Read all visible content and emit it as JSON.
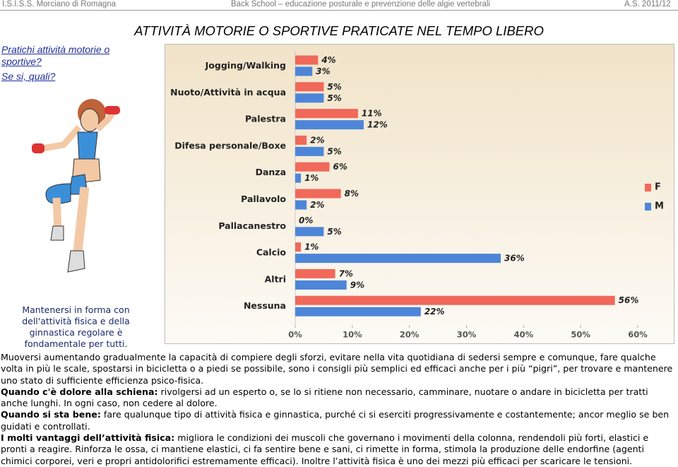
{
  "header": {
    "left": "I.S.I.S.S. Morciano di Romagna",
    "center": "Back School – educazione posturale e prevenzione delle algie vertebrali",
    "right": "A.S. 2011/12"
  },
  "title": "ATTIVITÀ MOTORIE O SPORTIVE PRATICATE NEL TEMPO LIBERO",
  "question": {
    "line1": "Pratichi attività motorie o sportive?",
    "line2": "Se si, quali?"
  },
  "caption": "Mantenersi in forma con dell'attività fisica e della ginnastica regolare è fondamentale per tutti.",
  "chart_data": {
    "type": "hbar",
    "categories": [
      "Jogging/Walking",
      "Nuoto/Attività in acqua",
      "Palestra",
      "Difesa personale/Boxe",
      "Danza",
      "Pallavolo",
      "Pallacanestro",
      "Calcio",
      "Altri",
      "Nessuna"
    ],
    "series": [
      {
        "name": "F",
        "color": "#f0695a",
        "values": [
          4,
          5,
          11,
          2,
          6,
          8,
          0,
          1,
          7,
          56
        ],
        "value_labels": [
          "4%",
          "5%",
          "11%",
          "2%",
          "6%",
          "8%",
          "0%",
          "1%",
          "7%",
          "56%"
        ]
      },
      {
        "name": "M",
        "color": "#4d86d8",
        "values": [
          3,
          5,
          12,
          5,
          1,
          2,
          5,
          36,
          9,
          22
        ],
        "value_labels": [
          "3%",
          "5%",
          "12%",
          "5%",
          "1%",
          "2%",
          "5%",
          "36%",
          "9%",
          "22%"
        ]
      }
    ],
    "xlim": [
      0,
      60
    ],
    "xticks": [
      {
        "value": 0,
        "label": "0%"
      },
      {
        "value": 10,
        "label": "10%"
      },
      {
        "value": 20,
        "label": "20%"
      },
      {
        "value": 30,
        "label": "30%"
      },
      {
        "value": 40,
        "label": "40%"
      },
      {
        "value": 50,
        "label": "50%"
      },
      {
        "value": 60,
        "label": "60%"
      }
    ],
    "legend": "right"
  },
  "paragraphs": [
    {
      "text": "Muoversi aumentando gradualmente la capacità di compiere degli sforzi, evitare nella vita quotidiana di sedersi sempre e comunque, fare qualche volta in più le scale, spostarsi in bicicletta o a piedi se possibile, sono i consigli più semplici ed efficaci anche per i più “pigri”, per trovare e mantenere uno stato di sufficiente efficienza psico-fisica."
    },
    {
      "lead": "Quando c'è dolore alla schiena:",
      "text": "rivolgersi ad un esperto o, se lo si ritiene non necessario, camminare, nuotare o andare in bicicletta per tratti anche lunghi. In ogni caso, non cedere al dolore."
    },
    {
      "lead": "Quando si sta bene:",
      "text": "fare qualunque tipo di attività fisica e ginnastica, purché ci si eserciti progressivamente e costantemente; ancor meglio se ben guidati e controllati."
    },
    {
      "lead": "I molti vantaggi dell’attività fisica:",
      "text": "migliora le condizioni dei muscoli che governano i movimenti della colonna, rendendoli più forti, elastici e pronti a reagire. Rinforza le ossa, ci mantiene elastici, ci fa sentire bene e sani, ci rimette in forma, stimola la produzione delle endorfine (agenti chimici corporei, veri e propri antidolorifici estremamente efficaci). Inoltre l’attività fisica è uno dei mezzi più efficaci per scaricare le tensioni."
    }
  ]
}
